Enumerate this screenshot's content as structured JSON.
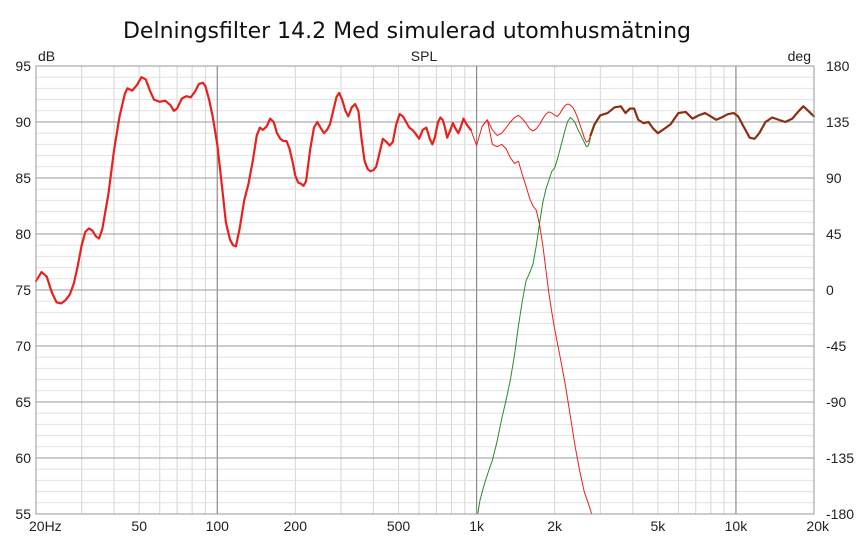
{
  "chart_data": {
    "type": "line",
    "title": "Delningsfilter 14.2 Med simulerad utomhusmätning",
    "center_label": "SPL",
    "left_unit": "dB",
    "right_unit": "deg",
    "xscale": "log",
    "xlim": [
      20,
      20000
    ],
    "ylim": [
      55,
      95
    ],
    "y2lim": [
      -180,
      180
    ],
    "grid": true,
    "x_ticks": [
      {
        "value": 20,
        "label": "20Hz"
      },
      {
        "value": 50,
        "label": "50"
      },
      {
        "value": 100,
        "label": "100"
      },
      {
        "value": 200,
        "label": "200"
      },
      {
        "value": 500,
        "label": "500"
      },
      {
        "value": 1000,
        "label": "1k"
      },
      {
        "value": 2000,
        "label": "2k"
      },
      {
        "value": 5000,
        "label": "5k"
      },
      {
        "value": 10000,
        "label": "10k"
      },
      {
        "value": 20000,
        "label": "20k"
      }
    ],
    "y_ticks": [
      95,
      90,
      85,
      80,
      75,
      70,
      65,
      60,
      55
    ],
    "y2_ticks": [
      180,
      135,
      90,
      45,
      0,
      -45,
      -90,
      -135,
      -180
    ],
    "series": [
      {
        "color": "#e8211d",
        "width": 2.2,
        "points": [
          [
            20,
            75.8
          ],
          [
            21,
            76.6
          ],
          [
            22,
            76.2
          ],
          [
            23,
            74.8
          ],
          [
            24,
            73.9
          ],
          [
            25,
            73.8
          ],
          [
            26,
            74.1
          ],
          [
            27,
            74.6
          ],
          [
            28,
            75.6
          ],
          [
            29,
            77.2
          ],
          [
            30,
            79.0
          ],
          [
            31,
            80.2
          ],
          [
            32,
            80.5
          ],
          [
            33,
            80.3
          ],
          [
            34,
            79.8
          ],
          [
            35,
            79.6
          ],
          [
            36,
            80.4
          ],
          [
            38,
            83.5
          ],
          [
            40,
            87.5
          ],
          [
            42,
            90.5
          ],
          [
            44,
            92.5
          ],
          [
            45,
            93.0
          ],
          [
            47,
            92.8
          ],
          [
            49,
            93.3
          ],
          [
            51,
            94.0
          ],
          [
            53,
            93.8
          ],
          [
            55,
            92.8
          ],
          [
            57,
            92.0
          ],
          [
            60,
            91.8
          ],
          [
            63,
            91.9
          ],
          [
            66,
            91.5
          ],
          [
            68,
            91.0
          ],
          [
            70,
            91.2
          ],
          [
            73,
            92.1
          ],
          [
            76,
            92.3
          ],
          [
            79,
            92.2
          ],
          [
            82,
            92.7
          ],
          [
            85,
            93.4
          ],
          [
            88,
            93.5
          ],
          [
            90,
            93.2
          ],
          [
            93,
            92.0
          ],
          [
            96,
            90.5
          ],
          [
            100,
            88.0
          ],
          [
            104,
            84.5
          ],
          [
            108,
            81.0
          ],
          [
            112,
            79.5
          ],
          [
            115,
            79.0
          ],
          [
            118,
            78.9
          ],
          [
            122,
            80.5
          ],
          [
            127,
            83.0
          ],
          [
            132,
            84.5
          ],
          [
            137,
            86.5
          ],
          [
            142,
            88.8
          ],
          [
            146,
            89.5
          ],
          [
            150,
            89.3
          ],
          [
            155,
            89.6
          ],
          [
            160,
            90.3
          ],
          [
            165,
            90.0
          ],
          [
            170,
            89.0
          ],
          [
            175,
            88.5
          ],
          [
            180,
            88.3
          ],
          [
            185,
            88.3
          ],
          [
            190,
            87.6
          ],
          [
            195,
            86.5
          ],
          [
            200,
            85.2
          ],
          [
            205,
            84.6
          ],
          [
            210,
            84.5
          ],
          [
            215,
            84.3
          ],
          [
            220,
            84.7
          ],
          [
            228,
            87.5
          ],
          [
            236,
            89.5
          ],
          [
            243,
            90.0
          ],
          [
            250,
            89.5
          ],
          [
            258,
            89.0
          ],
          [
            265,
            89.3
          ],
          [
            272,
            89.8
          ],
          [
            280,
            91.0
          ],
          [
            288,
            92.2
          ],
          [
            295,
            92.6
          ],
          [
            303,
            92.0
          ],
          [
            312,
            91.0
          ],
          [
            320,
            90.5
          ],
          [
            330,
            91.3
          ],
          [
            340,
            91.6
          ],
          [
            350,
            91.0
          ],
          [
            360,
            88.5
          ],
          [
            370,
            86.5
          ],
          [
            380,
            85.8
          ],
          [
            390,
            85.6
          ],
          [
            400,
            85.7
          ],
          [
            410,
            86.0
          ],
          [
            425,
            87.5
          ],
          [
            435,
            88.5
          ],
          [
            450,
            88.2
          ],
          [
            462,
            87.9
          ],
          [
            475,
            88.2
          ],
          [
            490,
            89.8
          ],
          [
            505,
            90.7
          ],
          [
            520,
            90.5
          ],
          [
            535,
            90.0
          ],
          [
            550,
            89.5
          ],
          [
            565,
            89.3
          ],
          [
            580,
            89.0
          ],
          [
            600,
            88.5
          ],
          [
            620,
            89.3
          ],
          [
            640,
            89.5
          ],
          [
            660,
            88.5
          ],
          [
            675,
            88.0
          ],
          [
            690,
            88.6
          ],
          [
            710,
            90.0
          ],
          [
            725,
            90.4
          ],
          [
            740,
            90.2
          ],
          [
            755,
            89.5
          ],
          [
            770,
            88.6
          ],
          [
            790,
            89.2
          ],
          [
            810,
            89.9
          ],
          [
            830,
            89.4
          ],
          [
            850,
            89.0
          ],
          [
            870,
            89.6
          ],
          [
            890,
            90.3
          ],
          [
            920,
            89.7
          ],
          [
            950,
            89.3
          ]
        ]
      },
      {
        "color": "#e8211d",
        "width": 1.0,
        "points": [
          [
            950,
            89.3
          ],
          [
            1000,
            87.9
          ],
          [
            1050,
            89.6
          ],
          [
            1100,
            90.2
          ],
          [
            1150,
            88.0
          ],
          [
            1200,
            87.8
          ],
          [
            1250,
            88.0
          ],
          [
            1300,
            87.6
          ],
          [
            1350,
            86.8
          ],
          [
            1400,
            86.3
          ],
          [
            1450,
            86.5
          ],
          [
            1500,
            85.3
          ],
          [
            1550,
            84.3
          ],
          [
            1600,
            83.2
          ],
          [
            1650,
            82.5
          ],
          [
            1700,
            82.1
          ],
          [
            1750,
            80.8
          ],
          [
            1800,
            79.0
          ],
          [
            1850,
            76.8
          ],
          [
            1900,
            74.7
          ],
          [
            1950,
            73.0
          ],
          [
            2000,
            71.5
          ],
          [
            2100,
            69.0
          ],
          [
            2200,
            66.5
          ],
          [
            2300,
            63.7
          ],
          [
            2400,
            61.0
          ],
          [
            2500,
            58.8
          ],
          [
            2600,
            57.0
          ],
          [
            2700,
            55.9
          ],
          [
            2780,
            55.0
          ]
        ]
      },
      {
        "color": "#2a8a28",
        "width": 1.0,
        "points": [
          [
            1010,
            55.0
          ],
          [
            1030,
            56.2
          ],
          [
            1060,
            57.3
          ],
          [
            1100,
            58.5
          ],
          [
            1150,
            59.8
          ],
          [
            1200,
            61.5
          ],
          [
            1250,
            63.5
          ],
          [
            1300,
            65.2
          ],
          [
            1350,
            67.0
          ],
          [
            1400,
            69.2
          ],
          [
            1450,
            71.8
          ],
          [
            1500,
            74.0
          ],
          [
            1550,
            75.8
          ],
          [
            1600,
            76.5
          ],
          [
            1650,
            77.3
          ],
          [
            1700,
            79.0
          ],
          [
            1750,
            81.0
          ],
          [
            1800,
            82.8
          ],
          [
            1850,
            84.0
          ],
          [
            1900,
            84.8
          ],
          [
            1950,
            85.6
          ],
          [
            2000,
            85.9
          ],
          [
            2050,
            86.7
          ],
          [
            2100,
            87.6
          ],
          [
            2150,
            88.5
          ],
          [
            2200,
            89.4
          ],
          [
            2250,
            90.1
          ],
          [
            2300,
            90.4
          ],
          [
            2350,
            90.2
          ],
          [
            2400,
            89.9
          ],
          [
            2450,
            89.4
          ],
          [
            2500,
            89.0
          ],
          [
            2550,
            88.6
          ],
          [
            2600,
            88.2
          ],
          [
            2650,
            87.8
          ],
          [
            2700,
            87.9
          ],
          [
            2750,
            88.6
          ]
        ]
      },
      {
        "color": "#e8211d",
        "width": 1.0,
        "points": [
          [
            1050,
            89.6
          ],
          [
            1100,
            90.2
          ],
          [
            1150,
            89.3
          ],
          [
            1200,
            88.8
          ],
          [
            1250,
            89.0
          ],
          [
            1300,
            89.5
          ],
          [
            1350,
            90.0
          ],
          [
            1400,
            90.4
          ],
          [
            1450,
            90.6
          ],
          [
            1500,
            90.3
          ],
          [
            1550,
            89.9
          ],
          [
            1600,
            89.4
          ],
          [
            1650,
            89.2
          ],
          [
            1700,
            89.4
          ],
          [
            1750,
            89.8
          ],
          [
            1800,
            90.3
          ],
          [
            1850,
            90.7
          ],
          [
            1900,
            90.9
          ],
          [
            1950,
            90.8
          ],
          [
            2000,
            90.6
          ],
          [
            2050,
            90.5
          ],
          [
            2100,
            90.8
          ],
          [
            2150,
            91.2
          ],
          [
            2200,
            91.5
          ],
          [
            2250,
            91.6
          ],
          [
            2300,
            91.5
          ],
          [
            2350,
            91.3
          ],
          [
            2400,
            90.9
          ],
          [
            2450,
            90.4
          ],
          [
            2500,
            89.8
          ],
          [
            2550,
            89.2
          ],
          [
            2600,
            88.6
          ],
          [
            2650,
            88.2
          ],
          [
            2700,
            88.3
          ],
          [
            2750,
            88.8
          ]
        ]
      },
      {
        "color": "#8a3010",
        "width": 2.2,
        "points": [
          [
            2750,
            88.8
          ],
          [
            2850,
            89.8
          ],
          [
            3000,
            90.6
          ],
          [
            3200,
            90.8
          ],
          [
            3400,
            91.3
          ],
          [
            3600,
            91.4
          ],
          [
            3750,
            90.8
          ],
          [
            3900,
            91.2
          ],
          [
            4050,
            91.2
          ],
          [
            4200,
            90.2
          ],
          [
            4400,
            89.9
          ],
          [
            4600,
            90.0
          ],
          [
            4800,
            89.4
          ],
          [
            5000,
            89.0
          ],
          [
            5300,
            89.4
          ],
          [
            5600,
            89.8
          ],
          [
            6000,
            90.8
          ],
          [
            6400,
            90.9
          ],
          [
            6800,
            90.3
          ],
          [
            7200,
            90.6
          ],
          [
            7600,
            90.8
          ],
          [
            8000,
            90.5
          ],
          [
            8400,
            90.2
          ],
          [
            8800,
            90.4
          ],
          [
            9300,
            90.7
          ],
          [
            9800,
            90.8
          ],
          [
            10200,
            90.5
          ],
          [
            10700,
            89.6
          ],
          [
            11300,
            88.6
          ],
          [
            11800,
            88.5
          ],
          [
            12300,
            89.0
          ],
          [
            13000,
            90.0
          ],
          [
            13800,
            90.4
          ],
          [
            14600,
            90.2
          ],
          [
            15500,
            90.0
          ],
          [
            16500,
            90.3
          ],
          [
            17500,
            91.0
          ],
          [
            18200,
            91.4
          ],
          [
            19000,
            91.0
          ],
          [
            20000,
            90.5
          ]
        ]
      }
    ]
  }
}
